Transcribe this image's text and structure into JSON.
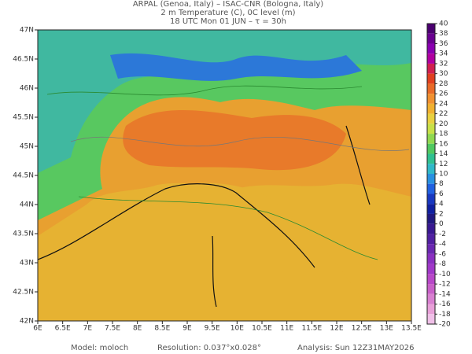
{
  "header": {
    "line1": "ARPAL (Genoa, Italy)  –  ISAC-CNR (Bologna, Italy)",
    "line2": "2 m Temperature (C), 0C level (m)",
    "line3": "18 UTC Mon 01 JUN  –  τ = 30h"
  },
  "map": {
    "xlim": [
      6,
      13.5
    ],
    "ylim": [
      42,
      47
    ],
    "xticks": [
      {
        "value": 6,
        "label": "6E"
      },
      {
        "value": 6.5,
        "label": "6.5E"
      },
      {
        "value": 7,
        "label": "7E"
      },
      {
        "value": 7.5,
        "label": "7.5E"
      },
      {
        "value": 8,
        "label": "8E"
      },
      {
        "value": 8.5,
        "label": "8.5E"
      },
      {
        "value": 9,
        "label": "9E"
      },
      {
        "value": 9.5,
        "label": "9.5E"
      },
      {
        "value": 10,
        "label": "10E"
      },
      {
        "value": 10.5,
        "label": "10.5E"
      },
      {
        "value": 11,
        "label": "11E"
      },
      {
        "value": 11.5,
        "label": "11.5E"
      },
      {
        "value": 12,
        "label": "12E"
      },
      {
        "value": 12.5,
        "label": "12.5E"
      },
      {
        "value": 13,
        "label": "13E"
      },
      {
        "value": 13.5,
        "label": "13.5E"
      }
    ],
    "yticks": [
      {
        "value": 42,
        "label": "42N"
      },
      {
        "value": 42.5,
        "label": "42.5N"
      },
      {
        "value": 43,
        "label": "43N"
      },
      {
        "value": 43.5,
        "label": "43.5N"
      },
      {
        "value": 44,
        "label": "44N"
      },
      {
        "value": 44.5,
        "label": "44.5N"
      },
      {
        "value": 45,
        "label": "45N"
      },
      {
        "value": 45.5,
        "label": "45.5N"
      },
      {
        "value": 46,
        "label": "46N"
      },
      {
        "value": 46.5,
        "label": "46.5N"
      },
      {
        "value": 47,
        "label": "47N"
      }
    ]
  },
  "colorbar": {
    "levels": [
      40,
      38,
      36,
      34,
      32,
      30,
      28,
      26,
      24,
      22,
      20,
      18,
      16,
      14,
      12,
      10,
      8,
      6,
      4,
      2,
      0,
      -2,
      -4,
      -6,
      -8,
      -10,
      -12,
      -14,
      -16,
      -18,
      -20
    ],
    "colors": [
      "#4b0070",
      "#6a0090",
      "#8a00b0",
      "#b000a0",
      "#d02050",
      "#e04020",
      "#e86a28",
      "#f09030",
      "#f0b030",
      "#e8d040",
      "#c8e048",
      "#90d850",
      "#50c860",
      "#30c090",
      "#30b8c8",
      "#2890e0",
      "#2060e0",
      "#1838c0",
      "#1020a0",
      "#201880",
      "#381890",
      "#5020a0",
      "#6a28b0",
      "#8a30c0",
      "#a038c8",
      "#b848c8",
      "#c860c8",
      "#d880d0",
      "#e8a0d8",
      "#f0c0e8"
    ]
  },
  "footer": {
    "model": "Model: moloch",
    "resolution": "Resolution: 0.037°x0.028°",
    "analysis": "Analysis: Sun 12Z31MAY2026"
  }
}
